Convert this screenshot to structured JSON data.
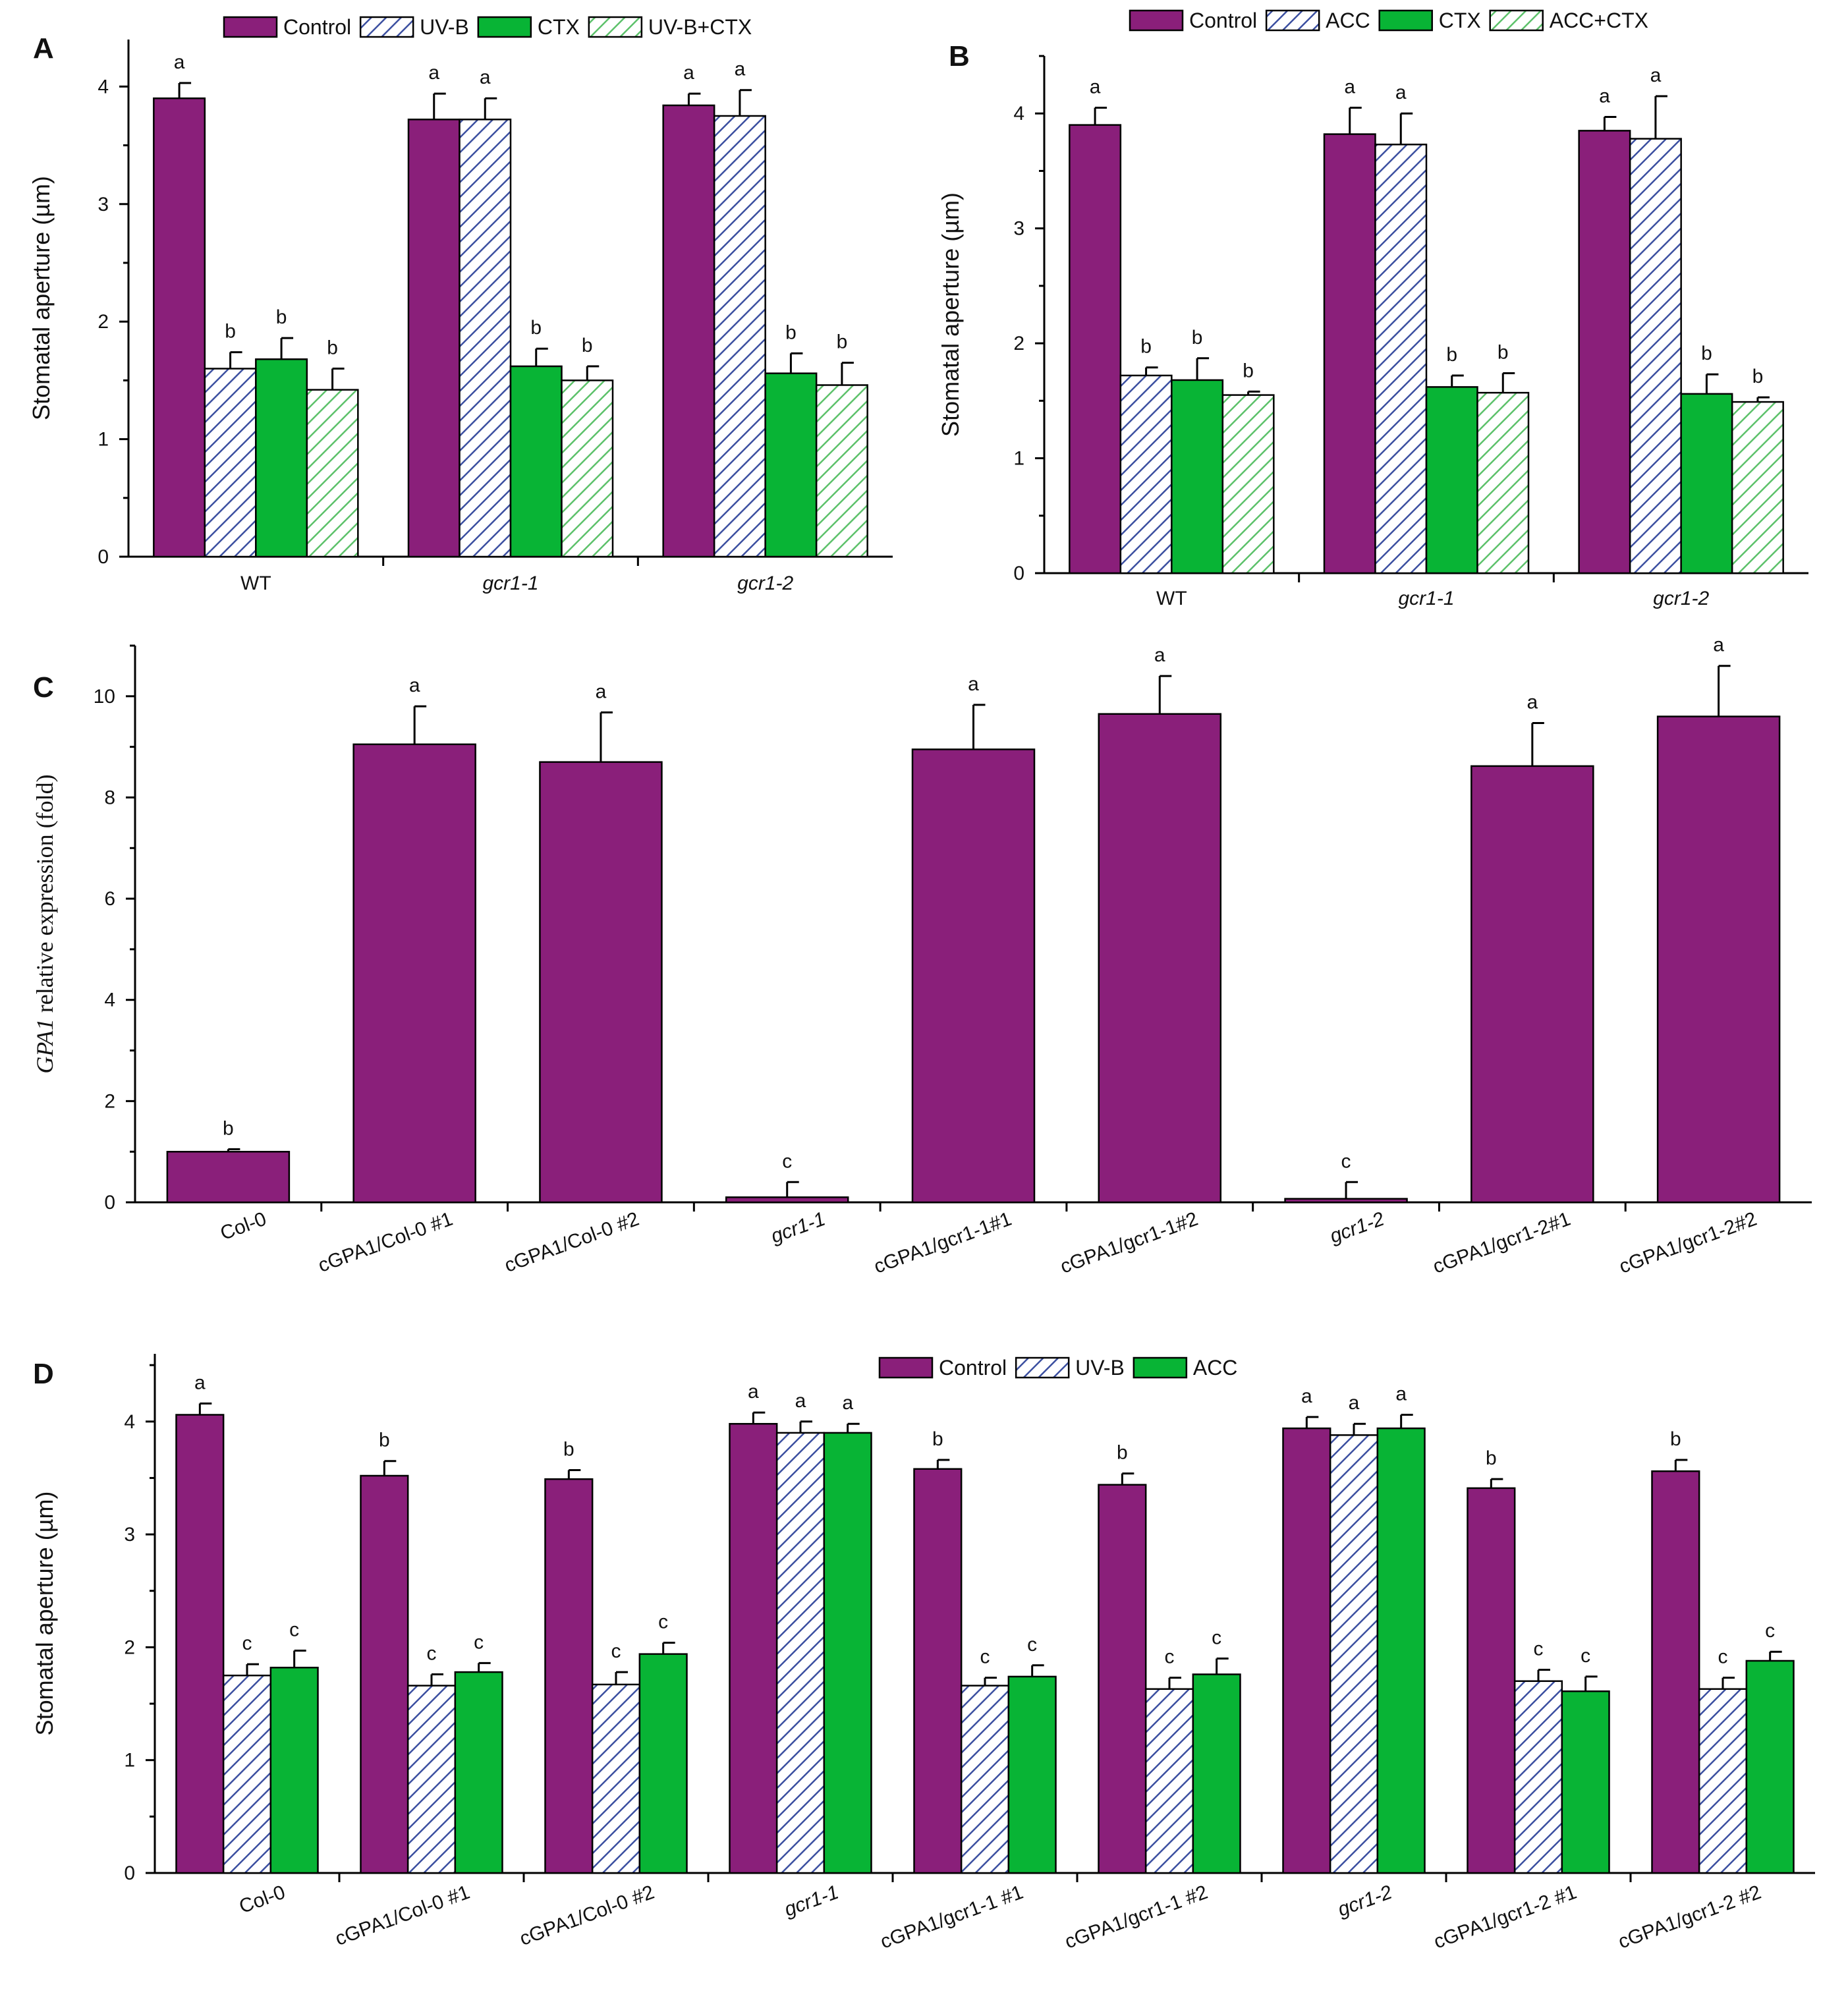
{
  "colors": {
    "control": "#8a1f7a",
    "hatch_blue": "#3b4fa0",
    "treat_green": "#08b435",
    "hatch_green": "#5cc16a",
    "axis": "#000000"
  },
  "chart_data": [
    {
      "id": "A",
      "panel_label": "A",
      "type": "bar",
      "ylabel": "Stomatal aperture (µm)",
      "ylim": [
        0,
        4.4
      ],
      "yticks": [
        0,
        1,
        2,
        3,
        4
      ],
      "legend_position": "top",
      "categories": [
        "WT",
        "gcr1-1",
        "gcr1-2"
      ],
      "category_italic": [
        false,
        true,
        true
      ],
      "series": [
        {
          "name": "Control",
          "style": "solid-purple",
          "values": [
            3.9,
            3.72,
            3.84
          ],
          "errors": [
            0.13,
            0.22,
            0.1
          ],
          "letters": [
            "a",
            "a",
            "a"
          ]
        },
        {
          "name": "UV-B",
          "style": "hatch-blue",
          "values": [
            1.6,
            3.72,
            3.75
          ],
          "errors": [
            0.14,
            0.18,
            0.22
          ],
          "letters": [
            "b",
            "a",
            "a"
          ]
        },
        {
          "name": "CTX",
          "style": "solid-green",
          "values": [
            1.68,
            1.62,
            1.56
          ],
          "errors": [
            0.18,
            0.15,
            0.17
          ],
          "letters": [
            "b",
            "b",
            "b"
          ]
        },
        {
          "name": "UV-B+CTX",
          "style": "hatch-green",
          "values": [
            1.42,
            1.5,
            1.46
          ],
          "errors": [
            0.18,
            0.12,
            0.19
          ],
          "letters": [
            "b",
            "b",
            "b"
          ]
        }
      ]
    },
    {
      "id": "B",
      "panel_label": "B",
      "type": "bar",
      "ylabel": "Stomatal aperture (µm)",
      "ylim": [
        0,
        4.5
      ],
      "yticks": [
        0,
        1,
        2,
        3,
        4
      ],
      "legend_position": "top",
      "categories": [
        "WT",
        "gcr1-1",
        "gcr1-2"
      ],
      "category_italic": [
        false,
        true,
        true
      ],
      "series": [
        {
          "name": "Control",
          "style": "solid-purple",
          "values": [
            3.9,
            3.82,
            3.85
          ],
          "errors": [
            0.15,
            0.23,
            0.12
          ],
          "letters": [
            "a",
            "a",
            "a"
          ]
        },
        {
          "name": "ACC",
          "style": "hatch-blue",
          "values": [
            1.72,
            3.73,
            3.78
          ],
          "errors": [
            0.07,
            0.27,
            0.37
          ],
          "letters": [
            "b",
            "a",
            "a"
          ]
        },
        {
          "name": "CTX",
          "style": "solid-green",
          "values": [
            1.68,
            1.62,
            1.56
          ],
          "errors": [
            0.19,
            0.1,
            0.17
          ],
          "letters": [
            "b",
            "b",
            "b"
          ]
        },
        {
          "name": "ACC+CTX",
          "style": "hatch-green",
          "values": [
            1.55,
            1.57,
            1.49
          ],
          "errors": [
            0.03,
            0.17,
            0.04
          ],
          "letters": [
            "b",
            "b",
            "b"
          ]
        }
      ]
    },
    {
      "id": "C",
      "panel_label": "C",
      "type": "bar",
      "ylabel_italic_part": "GPA1",
      "ylabel_rest": " relative expression (fold)",
      "ylim": [
        0,
        11
      ],
      "yticks": [
        0,
        2,
        4,
        6,
        8,
        10
      ],
      "categories": [
        "Col-0",
        "cGPA1/Col-0 #1",
        "cGPA1/Col-0 #2",
        "gcr1-1",
        "cGPA1/gcr1-1#1",
        "cGPA1/gcr1-1#2",
        "gcr1-2",
        "cGPA1/gcr1-2#1",
        "cGPA1/gcr1-2#2"
      ],
      "series": [
        {
          "name": "",
          "style": "solid-purple",
          "values": [
            1.0,
            9.05,
            8.7,
            0.1,
            8.95,
            9.65,
            0.07,
            8.62,
            9.6
          ],
          "errors": [
            0.05,
            0.75,
            0.98,
            0.3,
            0.88,
            0.75,
            0.33,
            0.85,
            1.0
          ],
          "letters": [
            "b",
            "a",
            "a",
            "c",
            "a",
            "a",
            "c",
            "a",
            "a"
          ]
        }
      ]
    },
    {
      "id": "D",
      "panel_label": "D",
      "type": "bar",
      "ylabel": "Stomatal aperture (µm)",
      "ylim": [
        0,
        4.6
      ],
      "yticks": [
        0,
        1,
        2,
        3,
        4
      ],
      "legend_position": "top",
      "categories": [
        "Col-0",
        "cGPA1/Col-0 #1",
        "cGPA1/Col-0 #2",
        "gcr1-1",
        "cGPA1/gcr1-1 #1",
        "cGPA1/gcr1-1 #2",
        "gcr1-2",
        "cGPA1/gcr1-2 #1",
        "cGPA1/gcr1-2 #2"
      ],
      "series": [
        {
          "name": "Control",
          "style": "solid-purple",
          "values": [
            4.06,
            3.52,
            3.49,
            3.98,
            3.58,
            3.44,
            3.94,
            3.41,
            3.56
          ],
          "errors": [
            0.1,
            0.13,
            0.08,
            0.1,
            0.08,
            0.1,
            0.1,
            0.08,
            0.1
          ],
          "letters": [
            "a",
            "b",
            "b",
            "a",
            "b",
            "b",
            "a",
            "b",
            "b"
          ]
        },
        {
          "name": "UV-B",
          "style": "hatch-blue",
          "values": [
            1.75,
            1.66,
            1.67,
            3.9,
            1.66,
            1.63,
            3.88,
            1.7,
            1.63
          ],
          "errors": [
            0.1,
            0.1,
            0.11,
            0.1,
            0.07,
            0.1,
            0.1,
            0.1,
            0.1
          ],
          "letters": [
            "c",
            "c",
            "c",
            "a",
            "c",
            "c",
            "a",
            "c",
            "c"
          ]
        },
        {
          "name": "ACC",
          "style": "solid-green",
          "values": [
            1.82,
            1.78,
            1.94,
            3.9,
            1.74,
            1.76,
            3.94,
            1.61,
            1.88
          ],
          "errors": [
            0.15,
            0.08,
            0.1,
            0.08,
            0.1,
            0.14,
            0.12,
            0.13,
            0.08
          ],
          "letters": [
            "c",
            "c",
            "c",
            "a",
            "c",
            "c",
            "a",
            "c",
            "c"
          ]
        }
      ]
    }
  ]
}
